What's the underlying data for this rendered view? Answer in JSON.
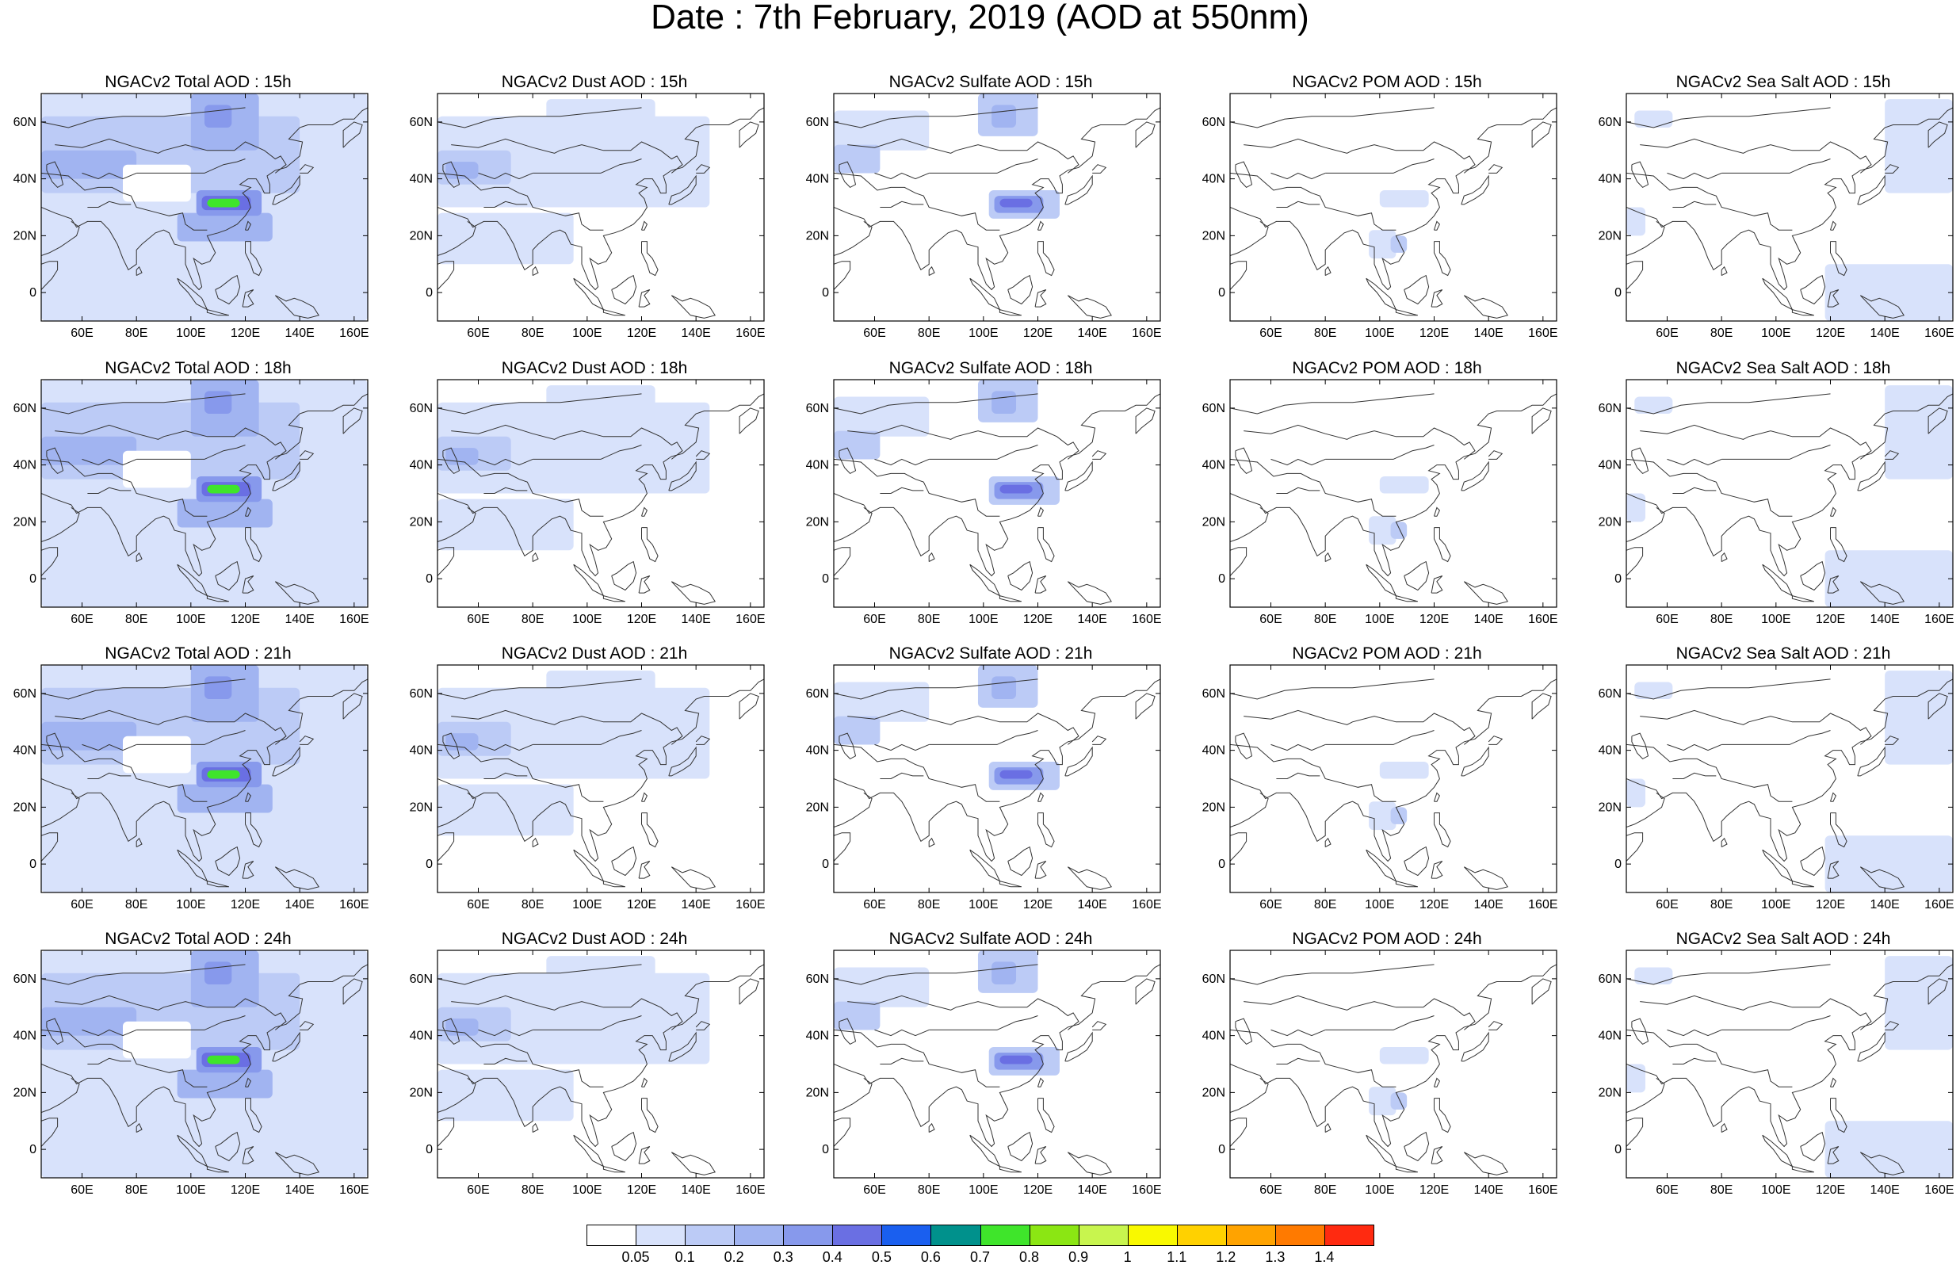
{
  "title": "Date : 7th February, 2019 (AOD at 550nm)",
  "lon_ticks": [
    "60E",
    "80E",
    "100E",
    "120E",
    "140E",
    "160E"
  ],
  "lat_ticks": [
    "60N",
    "40N",
    "20N",
    "0"
  ],
  "panels": [
    [
      {
        "title": "NGACv2 Total AOD : 15h",
        "kind": "total"
      },
      {
        "title": "NGACv2 Dust AOD : 15h",
        "kind": "dust"
      },
      {
        "title": "NGACv2 Sulfate AOD : 15h",
        "kind": "sulfate"
      },
      {
        "title": "NGACv2 POM AOD : 15h",
        "kind": "pom"
      },
      {
        "title": "NGACv2 Sea Salt AOD : 15h",
        "kind": "seasalt"
      }
    ],
    [
      {
        "title": "NGACv2 Total AOD : 18h",
        "kind": "total"
      },
      {
        "title": "NGACv2 Dust AOD : 18h",
        "kind": "dust"
      },
      {
        "title": "NGACv2 Sulfate AOD : 18h",
        "kind": "sulfate"
      },
      {
        "title": "NGACv2 POM AOD : 18h",
        "kind": "pom"
      },
      {
        "title": "NGACv2 Sea Salt AOD : 18h",
        "kind": "seasalt"
      }
    ],
    [
      {
        "title": "NGACv2 Total AOD : 21h",
        "kind": "total"
      },
      {
        "title": "NGACv2 Dust AOD : 21h",
        "kind": "dust"
      },
      {
        "title": "NGACv2 Sulfate AOD : 21h",
        "kind": "sulfate"
      },
      {
        "title": "NGACv2 POM AOD : 21h",
        "kind": "pom"
      },
      {
        "title": "NGACv2 Sea Salt AOD : 21h",
        "kind": "seasalt"
      }
    ],
    [
      {
        "title": "NGACv2 Total AOD : 24h",
        "kind": "total"
      },
      {
        "title": "NGACv2 Dust AOD : 24h",
        "kind": "dust"
      },
      {
        "title": "NGACv2 Sulfate AOD : 24h",
        "kind": "sulfate"
      },
      {
        "title": "NGACv2 POM AOD : 24h",
        "kind": "pom"
      },
      {
        "title": "NGACv2 Sea Salt  AOD : 24h",
        "kind": "seasalt"
      }
    ]
  ],
  "colorbar": {
    "labels": [
      "0.05",
      "0.1",
      "0.2",
      "0.3",
      "0.4",
      "0.5",
      "0.6",
      "0.7",
      "0.8",
      "0.9",
      "1",
      "1.1",
      "1.2",
      "1.3",
      "1.4"
    ],
    "colors": [
      "#ffffff",
      "#d8e2fb",
      "#bccbf6",
      "#a1b4f1",
      "#8799ec",
      "#6a6fe3",
      "#1a5fef",
      "#00918c",
      "#3fe52b",
      "#8be613",
      "#c8f54e",
      "#f9f900",
      "#ffd100",
      "#ffa300",
      "#ff7a00",
      "#ff2a10"
    ]
  }
}
